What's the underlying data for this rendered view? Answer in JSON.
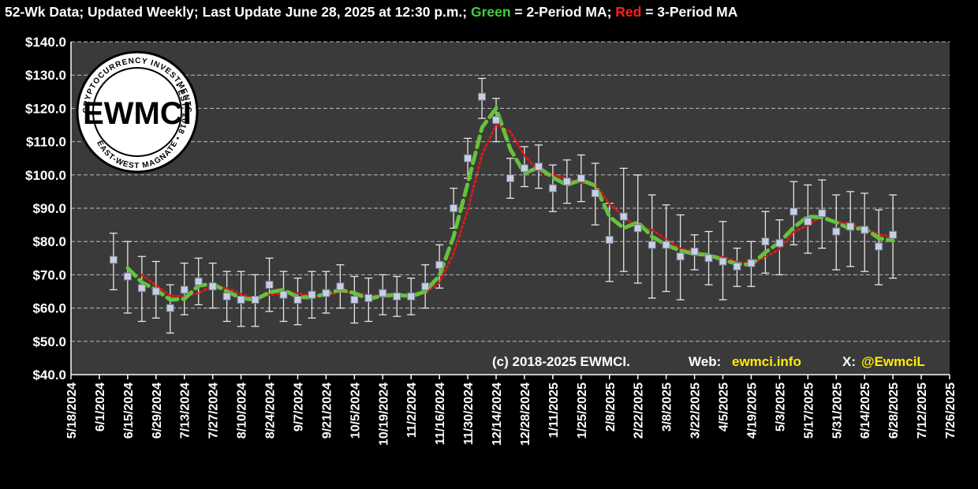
{
  "title": {
    "part1": "52-Wk Data; Updated Weekly; Last Update June 28, 2025 at 12:30 p.m.; ",
    "green_word": "Green",
    "part2": " = 2-Period MA; ",
    "red_word": "Red",
    "part3": " = 3-Period MA"
  },
  "logo": {
    "center_text": "EWMCI",
    "top_arc": "CRYPTOCURRENCY INVESTMENTS",
    "right_arc": "• EST. 2018 •",
    "bottom_arc": "EAST-WEST MAGNATE"
  },
  "footer": {
    "copyright": "(c) 2018-2025 EWMCI.",
    "web_label": "Web:",
    "web_value": "ewmci.info",
    "x_label": "X:",
    "x_value": "@EwmciL"
  },
  "colors": {
    "background": "#000000",
    "plot_area": "#3a3a3a",
    "gridline": "#bdbdbd",
    "marker": "#c8cfe0",
    "ma2_green": "#66c23a",
    "ma3_red": "#e01818",
    "footer_highlight": "#ffee00"
  },
  "chart_data": {
    "type": "scatter",
    "y_axis": {
      "min": 40,
      "max": 140,
      "step": 10,
      "tick_format": "$0.0",
      "gridlines": true
    },
    "x_axis": {
      "ticks": [
        "5/18/2024",
        "6/1/2024",
        "6/15/2024",
        "6/29/2024",
        "7/13/2024",
        "7/27/2024",
        "8/10/2024",
        "8/24/2024",
        "9/7/2024",
        "9/21/2024",
        "10/5/2024",
        "10/19/2024",
        "11/2/2024",
        "11/16/2024",
        "11/30/2024",
        "12/14/2024",
        "12/28/2024",
        "1/11/2025",
        "1/25/2025",
        "2/8/2025",
        "2/22/2025",
        "3/8/2025",
        "3/22/2025",
        "4/5/2025",
        "4/19/2025",
        "5/3/2025",
        "5/17/2025",
        "5/31/2025",
        "6/14/2025",
        "6/28/2025",
        "7/12/2025",
        "7/26/2025"
      ],
      "tick_interval_weeks": 2
    },
    "series": [
      {
        "name": "",
        "role": "weekly value with high/low error bars",
        "points": [
          {
            "x": "6/8/2024",
            "y": 74.5,
            "low": 65.5,
            "high": 82.5
          },
          {
            "x": "6/15/2024",
            "y": 69.5,
            "low": 58.5,
            "high": 80.0
          },
          {
            "x": "6/22/2024",
            "y": 66.0,
            "low": 56.0,
            "high": 75.5
          },
          {
            "x": "6/29/2024",
            "y": 65.0,
            "low": 57.0,
            "high": 74.0
          },
          {
            "x": "7/6/2024",
            "y": 60.0,
            "low": 52.5,
            "high": 67.0
          },
          {
            "x": "7/13/2024",
            "y": 65.5,
            "low": 58.0,
            "high": 73.5
          },
          {
            "x": "7/20/2024",
            "y": 68.0,
            "low": 61.0,
            "high": 75.0
          },
          {
            "x": "7/27/2024",
            "y": 66.5,
            "low": 60.0,
            "high": 73.5
          },
          {
            "x": "8/3/2024",
            "y": 63.5,
            "low": 56.0,
            "high": 71.0
          },
          {
            "x": "8/10/2024",
            "y": 62.5,
            "low": 54.5,
            "high": 71.0
          },
          {
            "x": "8/17/2024",
            "y": 62.5,
            "low": 54.5,
            "high": 70.0
          },
          {
            "x": "8/24/2024",
            "y": 67.0,
            "low": 59.0,
            "high": 75.0
          },
          {
            "x": "8/31/2024",
            "y": 64.0,
            "low": 56.0,
            "high": 71.0
          },
          {
            "x": "9/7/2024",
            "y": 62.5,
            "low": 55.0,
            "high": 69.0
          },
          {
            "x": "9/14/2024",
            "y": 64.0,
            "low": 57.0,
            "high": 71.0
          },
          {
            "x": "9/21/2024",
            "y": 64.5,
            "low": 58.5,
            "high": 71.0
          },
          {
            "x": "9/28/2024",
            "y": 66.5,
            "low": 60.0,
            "high": 73.0
          },
          {
            "x": "10/5/2024",
            "y": 62.5,
            "low": 55.5,
            "high": 69.5
          },
          {
            "x": "10/12/2024",
            "y": 63.0,
            "low": 56.0,
            "high": 69.0
          },
          {
            "x": "10/19/2024",
            "y": 64.5,
            "low": 58.0,
            "high": 70.0
          },
          {
            "x": "10/26/2024",
            "y": 63.5,
            "low": 57.5,
            "high": 69.5
          },
          {
            "x": "11/2/2024",
            "y": 63.5,
            "low": 58.0,
            "high": 69.0
          },
          {
            "x": "11/9/2024",
            "y": 66.5,
            "low": 60.0,
            "high": 73.0
          },
          {
            "x": "11/16/2024",
            "y": 73.0,
            "low": 66.0,
            "high": 79.0
          },
          {
            "x": "11/23/2024",
            "y": 90.0,
            "low": 84.0,
            "high": 96.0
          },
          {
            "x": "11/30/2024",
            "y": 105.0,
            "low": 99.0,
            "high": 111.0
          },
          {
            "x": "12/7/2024",
            "y": 123.5,
            "low": 117.0,
            "high": 129.0
          },
          {
            "x": "12/14/2024",
            "y": 116.5,
            "low": 110.0,
            "high": 123.0
          },
          {
            "x": "12/21/2024",
            "y": 99.0,
            "low": 93.0,
            "high": 105.0
          },
          {
            "x": "12/28/2024",
            "y": 102.0,
            "low": 96.5,
            "high": 108.5
          },
          {
            "x": "1/4/2025",
            "y": 102.5,
            "low": 96.0,
            "high": 109.0
          },
          {
            "x": "1/11/2025",
            "y": 96.0,
            "low": 89.0,
            "high": 103.0
          },
          {
            "x": "1/18/2025",
            "y": 98.0,
            "low": 91.5,
            "high": 104.5
          },
          {
            "x": "1/25/2025",
            "y": 99.0,
            "low": 92.0,
            "high": 106.0
          },
          {
            "x": "2/1/2025",
            "y": 94.5,
            "low": 85.0,
            "high": 103.5
          },
          {
            "x": "2/8/2025",
            "y": 80.5,
            "low": 68.0,
            "high": 91.5
          },
          {
            "x": "2/15/2025",
            "y": 87.5,
            "low": 71.0,
            "high": 102.0
          },
          {
            "x": "2/22/2025",
            "y": 84.0,
            "low": 67.5,
            "high": 100.0
          },
          {
            "x": "3/1/2025",
            "y": 79.0,
            "low": 63.0,
            "high": 94.0
          },
          {
            "x": "3/8/2025",
            "y": 79.0,
            "low": 65.0,
            "high": 91.0
          },
          {
            "x": "3/15/2025",
            "y": 75.5,
            "low": 62.5,
            "high": 88.0
          },
          {
            "x": "3/22/2025",
            "y": 77.0,
            "low": 71.5,
            "high": 82.0
          },
          {
            "x": "3/29/2025",
            "y": 75.0,
            "low": 67.0,
            "high": 83.0
          },
          {
            "x": "4/5/2025",
            "y": 74.0,
            "low": 62.5,
            "high": 86.0
          },
          {
            "x": "4/12/2025",
            "y": 72.5,
            "low": 66.5,
            "high": 78.0
          },
          {
            "x": "4/19/2025",
            "y": 73.5,
            "low": 66.5,
            "high": 80.0
          },
          {
            "x": "4/26/2025",
            "y": 80.0,
            "low": 70.5,
            "high": 89.0
          },
          {
            "x": "5/3/2025",
            "y": 79.5,
            "low": 70.0,
            "high": 86.5
          },
          {
            "x": "5/10/2025",
            "y": 89.0,
            "low": 79.0,
            "high": 98.0
          },
          {
            "x": "5/17/2025",
            "y": 86.0,
            "low": 76.5,
            "high": 97.0
          },
          {
            "x": "5/24/2025",
            "y": 88.5,
            "low": 78.0,
            "high": 98.5
          },
          {
            "x": "5/31/2025",
            "y": 83.0,
            "low": 71.5,
            "high": 94.0
          },
          {
            "x": "6/7/2025",
            "y": 84.5,
            "low": 72.5,
            "high": 95.0
          },
          {
            "x": "6/14/2025",
            "y": 83.5,
            "low": 71.0,
            "high": 94.5
          },
          {
            "x": "6/21/2025",
            "y": 78.5,
            "low": 67.0,
            "high": 89.5
          },
          {
            "x": "6/28/2025",
            "y": 82.0,
            "low": 69.0,
            "high": 94.0
          }
        ]
      },
      {
        "name": "2-Period MA",
        "color": "green",
        "style": "dashed",
        "derived_from": "weekly values"
      },
      {
        "name": "3-Period MA",
        "color": "red",
        "style": "dotted",
        "derived_from": "weekly values"
      }
    ]
  }
}
